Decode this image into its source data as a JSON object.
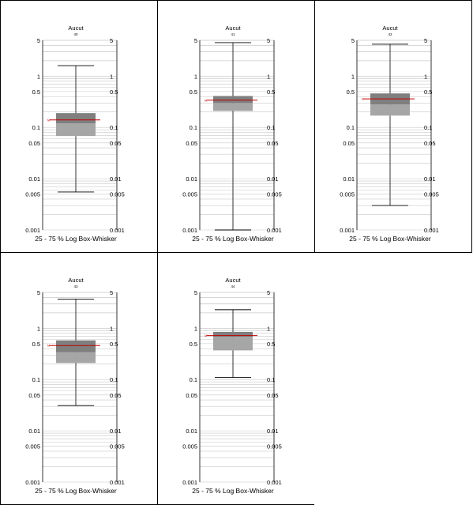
{
  "chart_data": [
    {
      "type": "boxplot",
      "title": "Aucut",
      "subtitle": "40",
      "xlabel": "25 - 75 % Log Box-Whisker",
      "yscale": "log",
      "ylim": [
        0.001,
        5
      ],
      "ytick_labels": [
        "5",
        "1",
        "0.5",
        "0.1",
        "0.05",
        "0.01",
        "0.005",
        "0.001"
      ],
      "ytick_values": [
        5,
        1,
        0.5,
        0.1,
        0.05,
        0.01,
        0.005,
        0.001
      ],
      "box": {
        "whisker_low": 0.0055,
        "q1": 0.068,
        "median": 0.12,
        "q3": 0.19,
        "whisker_high": 1.6,
        "mean": 0.14,
        "mean_label": "M"
      }
    },
    {
      "type": "boxplot",
      "title": "Aucut",
      "subtitle": "41",
      "xlabel": "25 - 75 % Log Box-Whisker",
      "yscale": "log",
      "ylim": [
        0.001,
        5
      ],
      "ytick_labels": [
        "5",
        "1",
        "0.5",
        "0.1",
        "0.05",
        "0.01",
        "0.005",
        "0.001"
      ],
      "ytick_values": [
        5,
        1,
        0.5,
        0.1,
        0.05,
        0.01,
        0.005,
        0.001
      ],
      "box": {
        "whisker_low": 0.001,
        "q1": 0.21,
        "median": 0.3,
        "q3": 0.41,
        "whisker_high": 4.5,
        "mean": 0.34,
        "mean_label": "M"
      }
    },
    {
      "type": "boxplot",
      "title": "Aucut",
      "subtitle": "42",
      "xlabel": "25 - 75 % Log Box-Whisker",
      "yscale": "log",
      "ylim": [
        0.001,
        5
      ],
      "ytick_labels": [
        "5",
        "1",
        "0.5",
        "0.1",
        "0.05",
        "0.01",
        "0.005",
        "0.001"
      ],
      "ytick_values": [
        5,
        1,
        0.5,
        0.1,
        0.05,
        0.01,
        0.005,
        0.001
      ],
      "box": {
        "whisker_low": 0.003,
        "q1": 0.17,
        "median": 0.28,
        "q3": 0.46,
        "whisker_high": 4.2,
        "mean": 0.36,
        "mean_label": "M"
      }
    },
    {
      "type": "boxplot",
      "title": "Aucut",
      "subtitle": "43",
      "xlabel": "25 - 75 % Log Box-Whisker",
      "yscale": "log",
      "ylim": [
        0.001,
        5
      ],
      "ytick_labels": [
        "5",
        "1",
        "0.5",
        "0.1",
        "0.05",
        "0.01",
        "0.005",
        "0.001"
      ],
      "ytick_values": [
        5,
        1,
        0.5,
        0.1,
        0.05,
        0.01,
        0.005,
        0.001
      ],
      "box": {
        "whisker_low": 0.031,
        "q1": 0.21,
        "median": 0.34,
        "q3": 0.58,
        "whisker_high": 3.7,
        "mean": 0.46,
        "mean_label": "M"
      }
    },
    {
      "type": "boxplot",
      "title": "Aucut",
      "subtitle": "44",
      "xlabel": "25 - 75 % Log Box-Whisker",
      "yscale": "log",
      "ylim": [
        0.001,
        5
      ],
      "ytick_labels": [
        "5",
        "1",
        "0.5",
        "0.1",
        "0.05",
        "0.01",
        "0.005",
        "0.001"
      ],
      "ytick_values": [
        5,
        1,
        0.5,
        0.1,
        0.05,
        0.01,
        0.005,
        0.001
      ],
      "box": {
        "whisker_low": 0.11,
        "q1": 0.37,
        "median": 0.68,
        "q3": 0.85,
        "whisker_high": 2.3,
        "mean": 0.72,
        "mean_label": "M"
      }
    }
  ],
  "colors": {
    "box_lower": "#a6a6a6",
    "box_upper": "#7f7f7f",
    "mean_line": "#c00000",
    "grid": "#c8c8c8",
    "axis": "#000000"
  }
}
